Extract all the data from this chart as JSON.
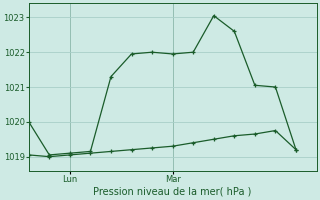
{
  "background_color": "#ceeae4",
  "plot_bg_color": "#ceeae4",
  "grid_color": "#a8cfc8",
  "line_color": "#1a5c2a",
  "xlabel": "Pression niveau de la mer( hPa )",
  "ylim": [
    1018.6,
    1023.4
  ],
  "yticks": [
    1019,
    1020,
    1021,
    1022,
    1023
  ],
  "xlim": [
    0,
    14
  ],
  "x_lun": 2,
  "x_mar": 7,
  "xtick_labels": [
    "Lun",
    "Mar"
  ],
  "series1_x": [
    0,
    1,
    2,
    3,
    4,
    5,
    6,
    7,
    8,
    9,
    10,
    11,
    12,
    13
  ],
  "series1_y": [
    1020.0,
    1019.05,
    1019.1,
    1019.15,
    1021.3,
    1021.95,
    1022.0,
    1021.95,
    1022.0,
    1023.05,
    1022.6,
    1021.05,
    1021.0,
    1019.2
  ],
  "series2_x": [
    0,
    1,
    2,
    3,
    4,
    5,
    6,
    7,
    8,
    9,
    10,
    11,
    12,
    13
  ],
  "series2_y": [
    1019.05,
    1019.0,
    1019.05,
    1019.1,
    1019.15,
    1019.2,
    1019.25,
    1019.3,
    1019.4,
    1019.5,
    1019.6,
    1019.65,
    1019.75,
    1019.2
  ],
  "line_width": 0.9,
  "marker_size": 3.5
}
